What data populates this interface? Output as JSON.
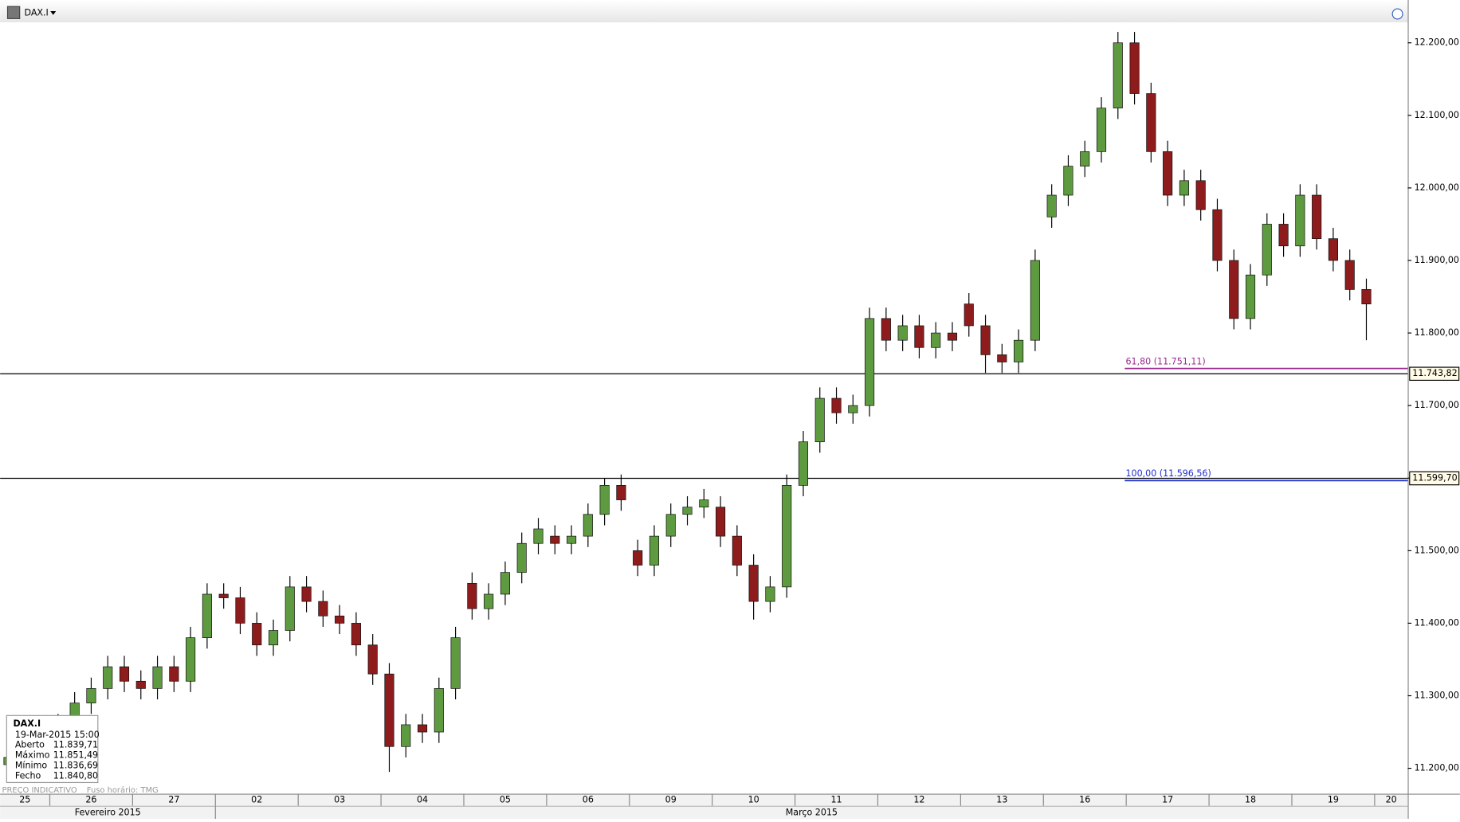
{
  "chart_data": {
    "type": "candlestick",
    "symbol": "DAX.I",
    "categories": [
      "25",
      null,
      null,
      "26",
      null,
      null,
      null,
      null,
      "27",
      null,
      null,
      null,
      null,
      "02",
      null,
      null,
      null,
      null,
      "03",
      null,
      null,
      null,
      null,
      "04",
      null,
      null,
      null,
      null,
      "05",
      null,
      null,
      null,
      null,
      "06",
      null,
      null,
      null,
      null,
      "09",
      null,
      null,
      null,
      null,
      "10",
      null,
      null,
      null,
      null,
      "11",
      null,
      null,
      null,
      null,
      "12",
      null,
      null,
      null,
      null,
      "13",
      null,
      null,
      null,
      null,
      "16",
      null,
      null,
      null,
      null,
      "17",
      null,
      null,
      null,
      null,
      "18",
      null,
      null,
      null,
      null,
      "19",
      null,
      null,
      null,
      null,
      "20",
      null
    ],
    "months": [
      "Fevereiro 2015",
      "Março 2015"
    ],
    "open": [
      11205,
      11215,
      11230,
      11240,
      11260,
      11290,
      11310,
      11340,
      11320,
      11310,
      11340,
      11320,
      11380,
      11440,
      11435,
      11400,
      11370,
      11390,
      11450,
      11430,
      11410,
      11400,
      11370,
      11330,
      11230,
      11260,
      11250,
      11310,
      11455,
      11420,
      11440,
      11470,
      11510,
      11520,
      11510,
      11520,
      11550,
      11590,
      11500,
      11480,
      11520,
      11550,
      11560,
      11560,
      11520,
      11480,
      11430,
      11450,
      11590,
      11650,
      11710,
      11690,
      11700,
      11820,
      11790,
      11810,
      11780,
      11800,
      11840,
      11810,
      11770,
      11760,
      11790,
      11960,
      11990,
      12030,
      12050,
      12110,
      12200,
      12130,
      12050,
      11990,
      12010,
      11970,
      11900,
      11820,
      11880,
      11950,
      11920,
      11990,
      11930,
      11900,
      11860,
      null,
      null
    ],
    "high": [
      11230,
      11245,
      11255,
      11275,
      11305,
      11325,
      11355,
      11355,
      11335,
      11355,
      11355,
      11395,
      11455,
      11455,
      11450,
      11415,
      11405,
      11465,
      11465,
      11445,
      11425,
      11415,
      11385,
      11345,
      11275,
      11275,
      11325,
      11395,
      11470,
      11455,
      11485,
      11525,
      11545,
      11535,
      11535,
      11565,
      11600,
      11605,
      11515,
      11535,
      11565,
      11575,
      11585,
      11575,
      11535,
      11495,
      11465,
      11605,
      11665,
      11725,
      11725,
      11715,
      11835,
      11835,
      11825,
      11825,
      11815,
      11815,
      11855,
      11825,
      11785,
      11805,
      11915,
      12005,
      12045,
      12065,
      12125,
      12215,
      12215,
      12145,
      12065,
      12025,
      12025,
      11985,
      11915,
      11895,
      11965,
      11965,
      12005,
      12005,
      11945,
      11915,
      11875,
      null,
      null
    ],
    "low": [
      11190,
      11200,
      11215,
      11225,
      11245,
      11275,
      11295,
      11305,
      11295,
      11295,
      11305,
      11305,
      11365,
      11420,
      11385,
      11355,
      11355,
      11375,
      11415,
      11395,
      11385,
      11355,
      11315,
      11195,
      11215,
      11235,
      11235,
      11295,
      11405,
      11405,
      11425,
      11455,
      11495,
      11495,
      11495,
      11505,
      11535,
      11555,
      11465,
      11465,
      11505,
      11535,
      11545,
      11505,
      11465,
      11405,
      11415,
      11435,
      11575,
      11635,
      11675,
      11675,
      11685,
      11775,
      11775,
      11765,
      11765,
      11775,
      11795,
      11745,
      11745,
      11745,
      11775,
      11945,
      11975,
      12015,
      12035,
      12095,
      12115,
      12035,
      11975,
      11975,
      11955,
      11885,
      11805,
      11805,
      11865,
      11905,
      11905,
      11915,
      11885,
      11845,
      11790,
      null,
      null
    ],
    "close": [
      11215,
      11230,
      11240,
      11260,
      11290,
      11310,
      11340,
      11320,
      11310,
      11340,
      11320,
      11380,
      11440,
      11435,
      11400,
      11370,
      11390,
      11450,
      11430,
      11410,
      11400,
      11370,
      11330,
      11230,
      11260,
      11250,
      11310,
      11380,
      11420,
      11440,
      11470,
      11510,
      11530,
      11510,
      11520,
      11550,
      11590,
      11570,
      11480,
      11520,
      11550,
      11560,
      11570,
      11520,
      11480,
      11430,
      11450,
      11590,
      11650,
      11710,
      11690,
      11700,
      11820,
      11790,
      11810,
      11780,
      11800,
      11790,
      11810,
      11770,
      11760,
      11790,
      11900,
      11990,
      12030,
      12050,
      12110,
      12200,
      12130,
      12050,
      11990,
      12010,
      11970,
      11900,
      11820,
      11880,
      11950,
      11920,
      11990,
      11930,
      11900,
      11860,
      11840,
      null,
      null
    ],
    "up_color": "#5e9a40",
    "down_color": "#8e1c1c",
    "ylim": [
      11165,
      12259
    ],
    "yticks": [
      {
        "value": 11200,
        "label": "11.200,00"
      },
      {
        "value": 11300,
        "label": "11.300,00"
      },
      {
        "value": 11400,
        "label": "11.400,00"
      },
      {
        "value": 11500,
        "label": "11.500,00"
      },
      {
        "value": 11600,
        "label": "11.600,00"
      },
      {
        "value": 11700,
        "label": "11.700,00"
      },
      {
        "value": 11800,
        "label": "11.800,00"
      },
      {
        "value": 11900,
        "label": "11.900,00"
      },
      {
        "value": 12000,
        "label": "12.000,00"
      },
      {
        "value": 12100,
        "label": "12.100,00"
      },
      {
        "value": 12200,
        "label": "12.200,00"
      }
    ],
    "hlines": [
      {
        "value": 11743.82,
        "label": "11.743,82"
      },
      {
        "value": 11599.7,
        "label": "11.599,70"
      }
    ],
    "fib_levels": [
      {
        "value": 11751.11,
        "label": "61,80 (11.751,11)",
        "color": "#9b2a8f"
      },
      {
        "value": 11596.56,
        "label": "100,00 (11.596,56)",
        "color": "#1f2fd0"
      }
    ],
    "info_box": {
      "title": "DAX.I",
      "datetime": "19-Mar-2015 15:00",
      "rows": [
        [
          "Aberto",
          "11.839,71"
        ],
        [
          "Máximo",
          "11.851,49"
        ],
        [
          "Mínimo",
          "11.836,69"
        ],
        [
          "Fecho",
          "11.840,80"
        ]
      ]
    },
    "footer": [
      "PREÇO INDICATIVO",
      "Fuso horário: TMG"
    ]
  }
}
